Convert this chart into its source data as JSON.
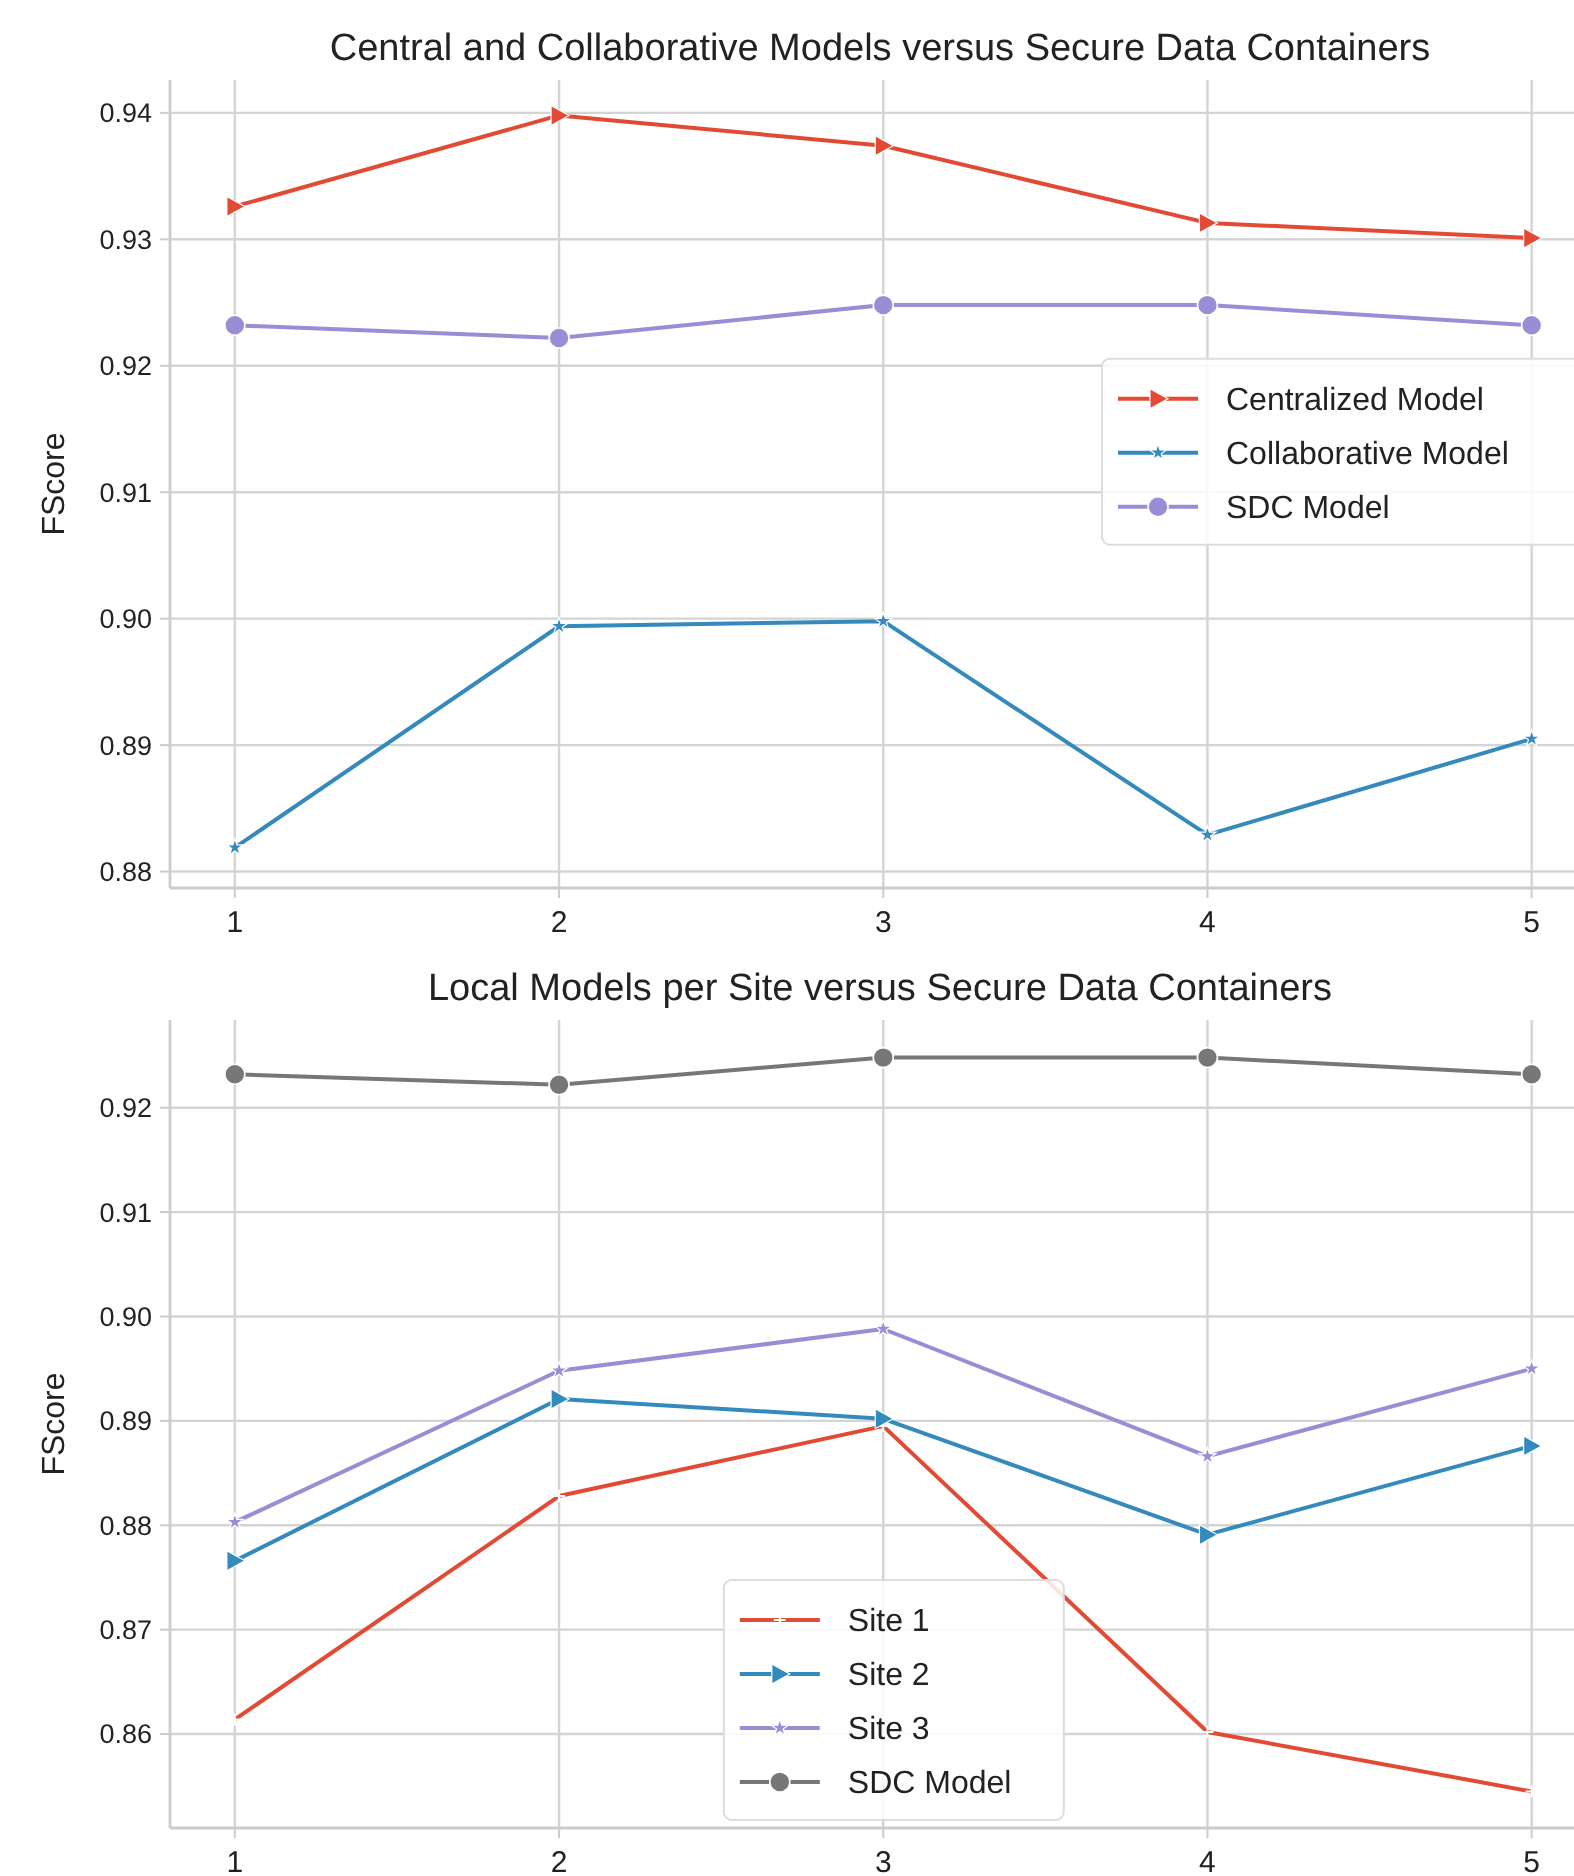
{
  "chart_data": [
    {
      "type": "line",
      "title": "Central and Collaborative Models versus Secure Data Containers",
      "ylabel": "FScore",
      "x": [
        1,
        2,
        3,
        4,
        5
      ],
      "xlim": [
        0.8,
        5.18
      ],
      "xticks": [
        1,
        2,
        3,
        4,
        5
      ],
      "ylim": [
        0.8787,
        0.9426
      ],
      "yticks": [
        {
          "value": 0.88,
          "label": "0.88"
        },
        {
          "value": 0.89,
          "label": "0.89"
        },
        {
          "value": 0.9,
          "label": "0.90"
        },
        {
          "value": 0.91,
          "label": "0.91"
        },
        {
          "value": 0.92,
          "label": "0.92"
        },
        {
          "value": 0.93,
          "label": "0.93"
        },
        {
          "value": 0.94,
          "label": "0.94"
        }
      ],
      "grid": true,
      "legend": "right",
      "series": [
        {
          "name": "Centralized Model",
          "color": "#e24a33",
          "marker": "triangle",
          "values": [
            0.9326,
            0.9398,
            0.9374,
            0.9313,
            0.9301
          ]
        },
        {
          "name": "Collaborative Model",
          "color": "#348abd",
          "marker": "star",
          "values": [
            0.8819,
            0.8994,
            0.8998,
            0.8829,
            0.8905
          ]
        },
        {
          "name": "SDC Model",
          "color": "#988ed5",
          "marker": "circle",
          "values": [
            0.9232,
            0.9222,
            0.9248,
            0.9248,
            0.9232
          ]
        }
      ]
    },
    {
      "type": "line",
      "title": "Local Models per Site versus Secure Data Containers",
      "ylabel": "FScore",
      "x": [
        1,
        2,
        3,
        4,
        5
      ],
      "xlim": [
        0.8,
        5.18
      ],
      "xticks": [
        1,
        2,
        3,
        4,
        5
      ],
      "ylim": [
        0.851,
        0.9284
      ],
      "yticks": [
        {
          "value": 0.86,
          "label": "0.86"
        },
        {
          "value": 0.87,
          "label": "0.87"
        },
        {
          "value": 0.88,
          "label": "0.88"
        },
        {
          "value": 0.89,
          "label": "0.89"
        },
        {
          "value": 0.9,
          "label": "0.90"
        },
        {
          "value": 0.91,
          "label": "0.91"
        },
        {
          "value": 0.92,
          "label": "0.92"
        }
      ],
      "grid": true,
      "legend": "bottom",
      "series": [
        {
          "name": "Site 1",
          "color": "#e24a33",
          "marker": "cross",
          "values": [
            0.8614,
            0.8828,
            0.8895,
            0.8602,
            0.8545
          ]
        },
        {
          "name": "Site 2",
          "color": "#348abd",
          "marker": "triangle",
          "values": [
            0.8766,
            0.8921,
            0.8902,
            0.8791,
            0.8876
          ]
        },
        {
          "name": "Site 3",
          "color": "#988ed5",
          "marker": "star",
          "values": [
            0.8803,
            0.8948,
            0.8988,
            0.8866,
            0.895
          ]
        },
        {
          "name": "SDC Model",
          "color": "#777777",
          "marker": "circle",
          "values": [
            0.9232,
            0.9222,
            0.9248,
            0.9248,
            0.9232
          ]
        }
      ]
    }
  ]
}
